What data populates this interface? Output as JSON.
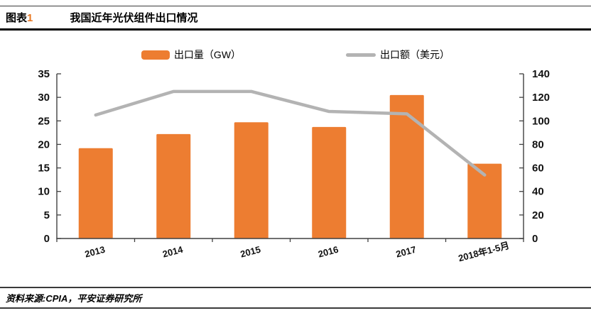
{
  "header": {
    "label_text": "图表",
    "label_number": "1",
    "title": "我国近年光伏组件出口情况"
  },
  "footer": {
    "source": "资料来源:CPIA，平安证券研究所"
  },
  "colors": {
    "bar": "#ED7D31",
    "line": "#B3B3B3",
    "axis": "#404040",
    "accent": "#E87722",
    "text": "#000000"
  },
  "chart_data": {
    "type": "bar",
    "combo": "bar+line",
    "title": "我国近年光伏组件出口情况",
    "categories": [
      "2013",
      "2014",
      "2015",
      "2016",
      "2017",
      "2018年1-5月"
    ],
    "series": [
      {
        "name": "出口量（GW）",
        "type": "bar",
        "axis": "left",
        "color": "#ED7D31",
        "values": [
          19.2,
          22.2,
          24.7,
          23.7,
          30.5,
          15.9
        ]
      },
      {
        "name": "出口额（美元）",
        "type": "line",
        "axis": "right",
        "color": "#B3B3B3",
        "values": [
          105,
          125,
          125,
          108,
          106,
          54
        ]
      }
    ],
    "left_axis": {
      "min": 0,
      "max": 35,
      "step": 5
    },
    "right_axis": {
      "min": 0,
      "max": 140,
      "step": 20
    },
    "grid": false,
    "legend_position": "top",
    "xlabel_rotation_deg": -15
  }
}
